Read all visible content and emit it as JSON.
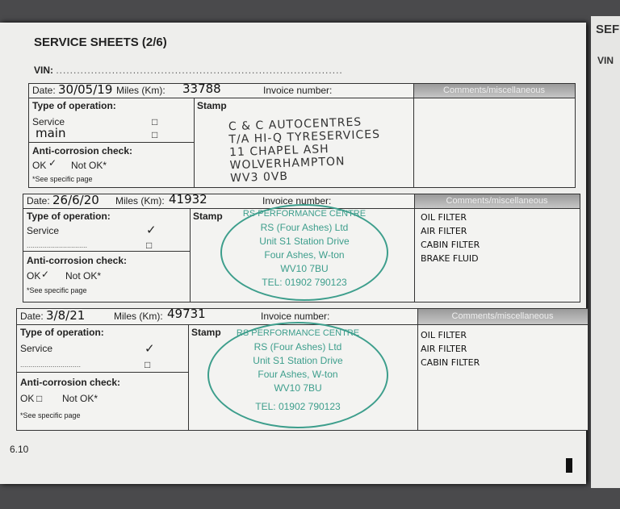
{
  "title": "SERVICE SHEETS (2/6)",
  "vin_label": "VIN:",
  "vin_dots": "..................................................................................",
  "labels": {
    "date": "Date:",
    "miles": "Miles (Km):",
    "miles_struck": "Miles (Km):",
    "invoice": "Invoice number:",
    "comments": "Comments/miscellaneous",
    "type": "Type of operation:",
    "service": "Service",
    "stamp": "Stamp",
    "anti": "Anti-corrosion check:",
    "ok": "OK",
    "notok": "Not OK*",
    "see": "*See specific page",
    "dots": "..............................",
    "box": "□",
    "tick": "✓"
  },
  "entries": [
    {
      "date": "30/05/19",
      "miles": "33788",
      "other_op": "main",
      "stamp_lines": [
        "C & C AUTOCENTRES",
        "T/A HI-Q TYRESERVICES",
        "11 CHAPEL ASH",
        "WOLVERHAMPTON",
        "WV3 0VB"
      ],
      "comments": ""
    },
    {
      "date": "26/6/20",
      "miles": "41932",
      "stamp_lines": [
        "RS PERFORMANCE CENTRE",
        "RS (Four Ashes) Ltd",
        "Unit S1 Station Drive",
        "Four Ashes, W-ton",
        "WV10 7BU",
        "TEL: 01902 790123"
      ],
      "comments": "OIL FILTER\nAIR FILTER\nCABIN FILTER\nBRAKE FLUID"
    },
    {
      "date": "3/8/21",
      "miles": "49731",
      "stamp_lines": [
        "RS PERFORMANCE CENTRE",
        "RS (Four Ashes) Ltd",
        "Unit S1 Station Drive",
        "Four Ashes, W-ton",
        "WV10 7BU",
        "TEL: 01902 790123"
      ],
      "comments": "OIL FILTER\nAIR FILTER\nCABIN FILTER"
    }
  ],
  "page_number": "6.10",
  "right_page": {
    "title": "SEF",
    "vin": "VIN"
  }
}
